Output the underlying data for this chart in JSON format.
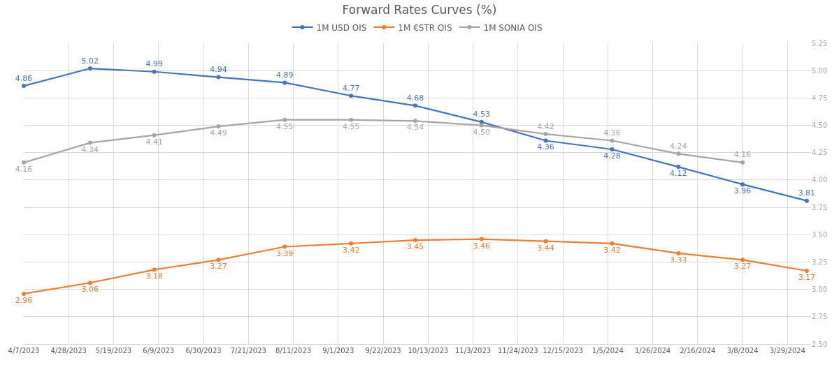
{
  "chart_data": {
    "type": "line",
    "title": "Forward Rates Curves (%)",
    "x": [
      "2023-04-07",
      "2023-05-08",
      "2023-06-07",
      "2023-07-07",
      "2023-08-07",
      "2023-09-07",
      "2023-10-07",
      "2023-11-07",
      "2023-12-07",
      "2024-01-07",
      "2024-02-07",
      "2024-03-08",
      "2024-04-07"
    ],
    "series": [
      {
        "name": "1M USD OIS",
        "color": "#4472c4",
        "values": [
          4.86,
          5.02,
          4.99,
          4.94,
          4.89,
          4.77,
          4.68,
          4.53,
          4.36,
          4.28,
          4.12,
          3.96,
          3.81
        ],
        "value_labels": [
          "4.86",
          "5.02",
          "4.99",
          "4.94",
          "4.89",
          "4.77",
          "4.68",
          "4.53",
          "4.36",
          "4.28",
          "4.12",
          "3.96",
          "3.81"
        ]
      },
      {
        "name": "1M €STR OIS",
        "color": "#ed7d31",
        "values": [
          2.96,
          3.06,
          3.18,
          3.27,
          3.39,
          3.42,
          3.45,
          3.46,
          3.44,
          3.42,
          3.33,
          3.27,
          3.17
        ],
        "value_labels": [
          "2.96",
          "3.06",
          "3.18",
          "3.27",
          "3.39",
          "3.42",
          "3.45",
          "3.46",
          "3.44",
          "3.42",
          "3.33",
          "3.27",
          "3.17"
        ]
      },
      {
        "name": "1M SONIA OIS",
        "color": "#a5a5a5",
        "values": [
          4.16,
          4.34,
          4.41,
          4.49,
          4.55,
          4.55,
          4.54,
          4.5,
          4.42,
          4.36,
          4.24,
          4.16,
          null
        ],
        "value_labels": [
          "4.16",
          "4.34",
          "4.41",
          "4.49",
          "4.55",
          "4.55",
          "4.54",
          "4.50",
          "4.42",
          "4.36",
          "4.24",
          "4.16",
          null
        ]
      }
    ],
    "xlim": [
      "2023-04-07",
      "2024-04-09"
    ],
    "xticks": [
      {
        "value": "2023-04-07",
        "label": "4/7/2023"
      },
      {
        "value": "2023-04-28",
        "label": "4/28/2023"
      },
      {
        "value": "2023-05-19",
        "label": "5/19/2023"
      },
      {
        "value": "2023-06-09",
        "label": "6/9/2023"
      },
      {
        "value": "2023-06-30",
        "label": "6/30/2023"
      },
      {
        "value": "2023-07-21",
        "label": "7/21/2023"
      },
      {
        "value": "2023-08-11",
        "label": "8/11/2023"
      },
      {
        "value": "2023-09-01",
        "label": "9/1/2023"
      },
      {
        "value": "2023-09-22",
        "label": "9/22/2023"
      },
      {
        "value": "2023-10-13",
        "label": "10/13/2023"
      },
      {
        "value": "2023-11-03",
        "label": "11/3/2023"
      },
      {
        "value": "2023-11-24",
        "label": "11/24/2023"
      },
      {
        "value": "2023-12-15",
        "label": "12/15/2023"
      },
      {
        "value": "2024-01-05",
        "label": "1/5/2024"
      },
      {
        "value": "2024-01-26",
        "label": "1/26/2024"
      },
      {
        "value": "2024-02-16",
        "label": "2/16/2024"
      },
      {
        "value": "2024-03-08",
        "label": "3/8/2024"
      },
      {
        "value": "2024-03-29",
        "label": "3/29/2024"
      }
    ],
    "ylim": [
      2.5,
      5.25
    ],
    "yticks": [
      {
        "value": 2.5,
        "label": "2.50"
      },
      {
        "value": 2.75,
        "label": "2.75"
      },
      {
        "value": 3,
        "label": "3.00"
      },
      {
        "value": 3.25,
        "label": "3.25"
      },
      {
        "value": 3.5,
        "label": "3.50"
      },
      {
        "value": 3.75,
        "label": "3.75"
      },
      {
        "value": 4,
        "label": "4.00"
      },
      {
        "value": 4.25,
        "label": "4.25"
      },
      {
        "value": 4.5,
        "label": "4.50"
      },
      {
        "value": 4.75,
        "label": "4.75"
      },
      {
        "value": 5,
        "label": "5.00"
      },
      {
        "value": 5.25,
        "label": "5.25"
      }
    ],
    "grid": true,
    "legend": "top",
    "marker": "circle",
    "line_style": "solid"
  }
}
